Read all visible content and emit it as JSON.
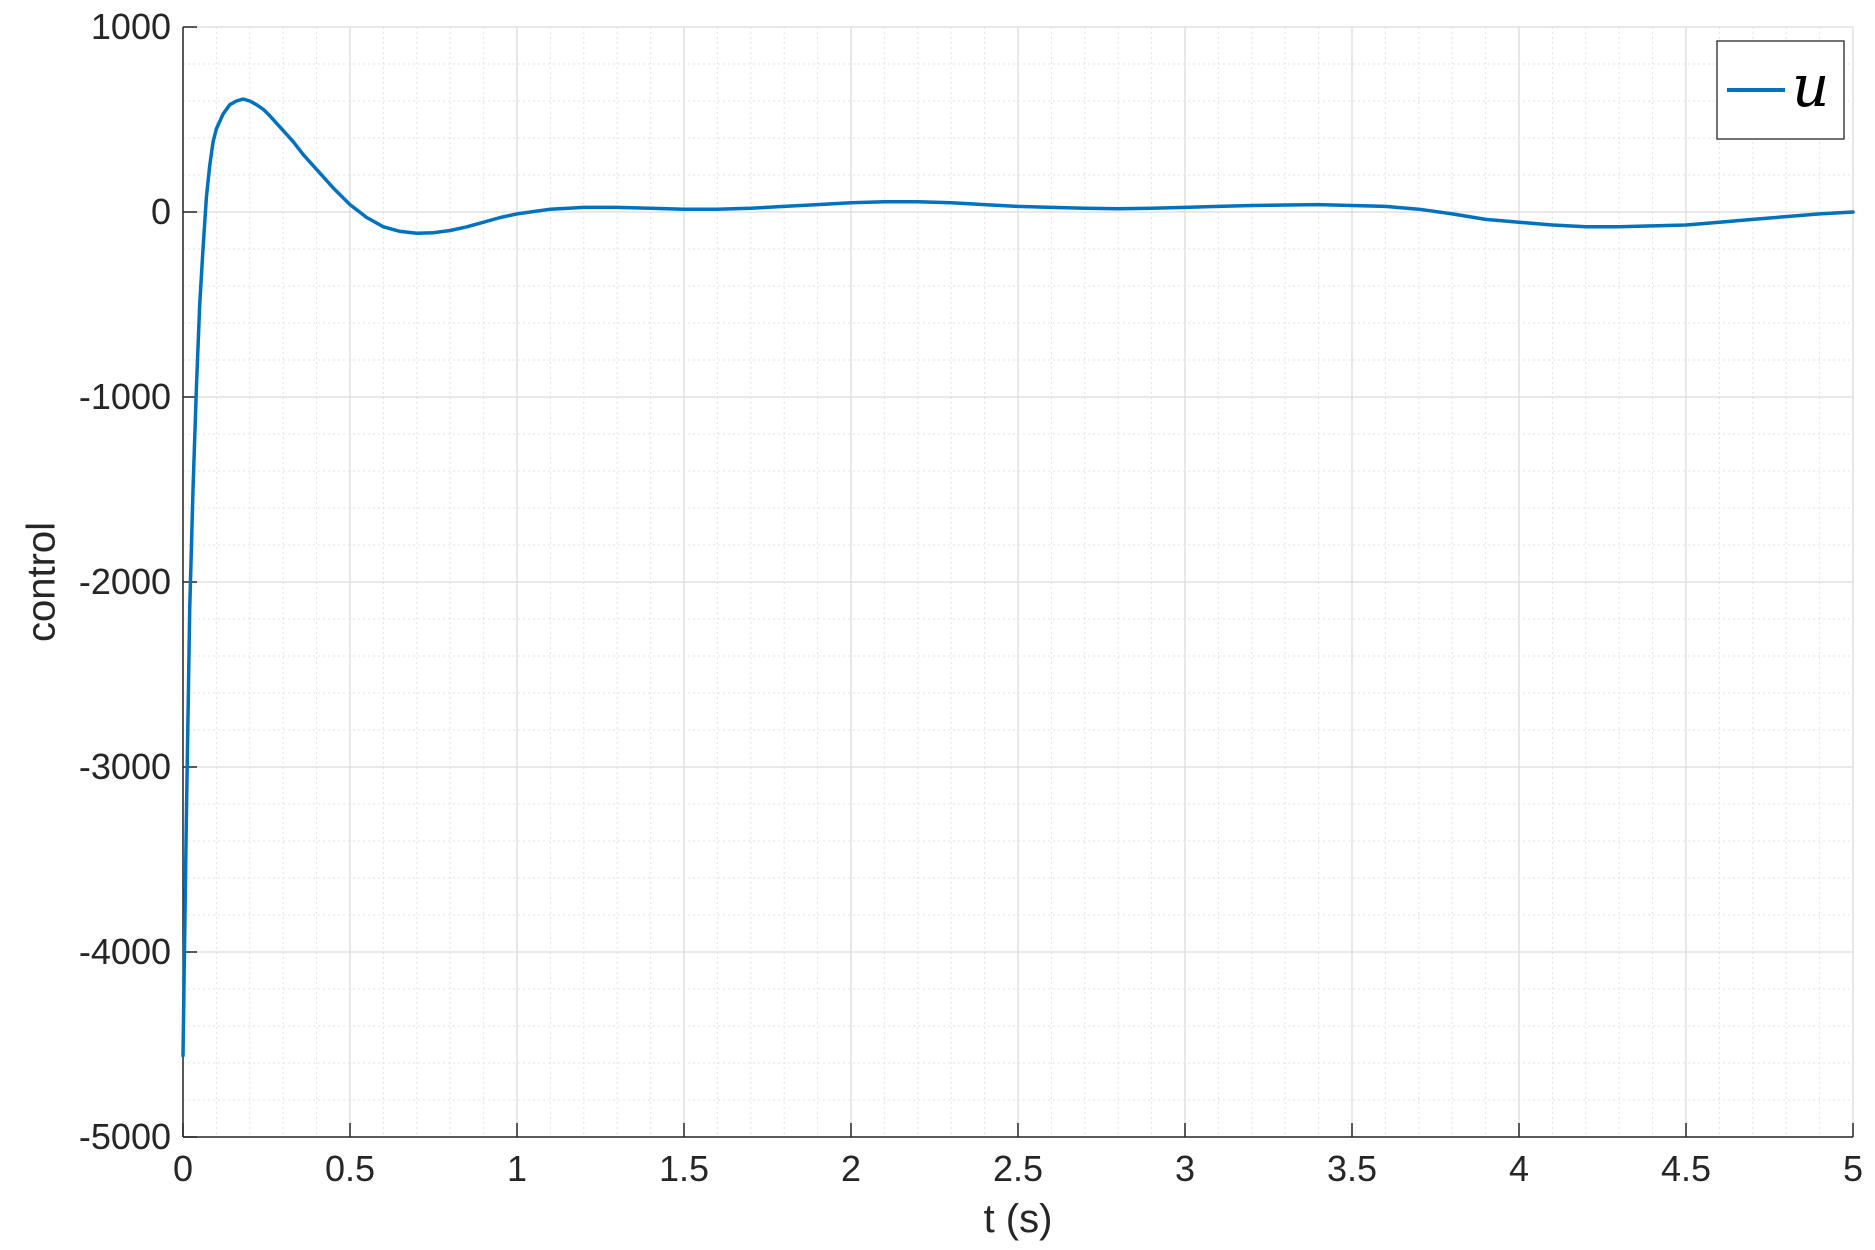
{
  "chart_data": {
    "type": "line",
    "title": "",
    "xlabel": "t (s)",
    "ylabel": "control",
    "xlim": [
      0,
      5
    ],
    "ylim": [
      -5000,
      1000
    ],
    "xticks": [
      0,
      0.5,
      1,
      1.5,
      2,
      2.5,
      3,
      3.5,
      4,
      4.5,
      5
    ],
    "xtick_labels": [
      "0",
      "0.5",
      "1",
      "1.5",
      "2",
      "2.5",
      "3",
      "3.5",
      "4",
      "4.5",
      "5"
    ],
    "yticks": [
      -5000,
      -4000,
      -3000,
      -2000,
      -1000,
      0,
      1000
    ],
    "ytick_labels": [
      "-5000",
      "-4000",
      "-3000",
      "-2000",
      "-1000",
      "0",
      "1000"
    ],
    "grid": true,
    "minor_grid": true,
    "legend": {
      "location": "top-right",
      "entries": [
        "u"
      ]
    },
    "series": [
      {
        "name": "u",
        "color": "#0072BD",
        "x": [
          0,
          0.01,
          0.02,
          0.03,
          0.04,
          0.05,
          0.06,
          0.07,
          0.08,
          0.09,
          0.1,
          0.12,
          0.14,
          0.16,
          0.18,
          0.2,
          0.22,
          0.24,
          0.26,
          0.28,
          0.3,
          0.33,
          0.36,
          0.4,
          0.45,
          0.5,
          0.55,
          0.6,
          0.65,
          0.7,
          0.75,
          0.8,
          0.85,
          0.9,
          0.95,
          1.0,
          1.1,
          1.2,
          1.3,
          1.4,
          1.5,
          1.6,
          1.7,
          1.8,
          1.9,
          2.0,
          2.1,
          2.2,
          2.3,
          2.4,
          2.5,
          2.6,
          2.7,
          2.8,
          2.9,
          3.0,
          3.1,
          3.2,
          3.3,
          3.4,
          3.5,
          3.6,
          3.7,
          3.8,
          3.9,
          4.0,
          4.1,
          4.2,
          4.3,
          4.4,
          4.5,
          4.6,
          4.7,
          4.8,
          4.9,
          5.0
        ],
        "y": [
          -4560,
          -3300,
          -2150,
          -1500,
          -950,
          -500,
          -200,
          80,
          250,
          380,
          450,
          530,
          580,
          600,
          610,
          600,
          580,
          555,
          520,
          480,
          440,
          380,
          310,
          230,
          130,
          40,
          -30,
          -80,
          -105,
          -115,
          -112,
          -100,
          -80,
          -55,
          -30,
          -10,
          15,
          25,
          25,
          20,
          15,
          15,
          20,
          30,
          40,
          50,
          55,
          55,
          50,
          40,
          30,
          25,
          20,
          18,
          20,
          25,
          30,
          35,
          38,
          40,
          35,
          30,
          15,
          -10,
          -40,
          -55,
          -70,
          -80,
          -80,
          -75,
          -70,
          -55,
          -40,
          -25,
          -10,
          0
        ]
      }
    ]
  }
}
